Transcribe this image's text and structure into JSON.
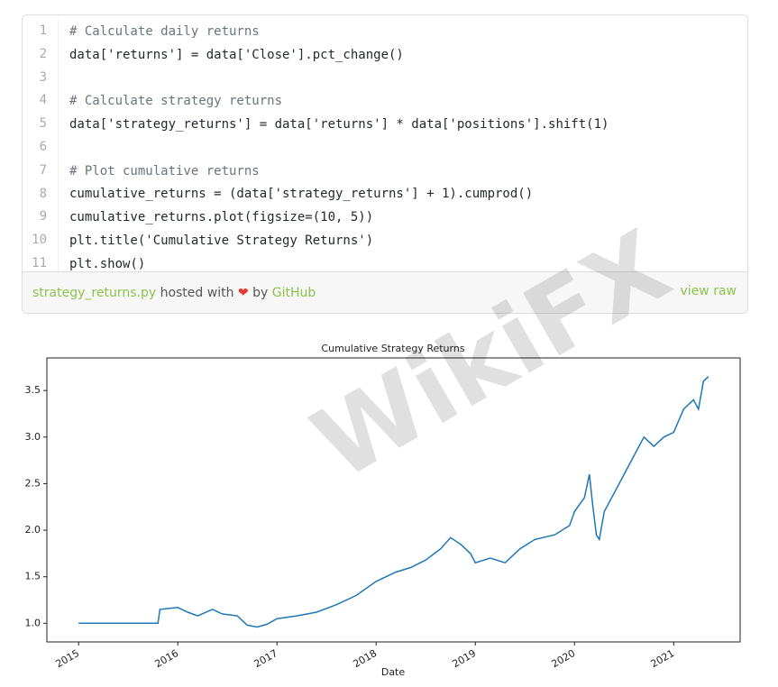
{
  "gist": {
    "line_numbers": [
      1,
      2,
      3,
      4,
      5,
      6,
      7,
      8,
      9,
      10,
      11
    ],
    "lines": [
      "# Calculate daily returns",
      "data['returns'] = data['Close'].pct_change()",
      "",
      "# Calculate strategy returns",
      "data['strategy_returns'] = data['returns'] * data['positions'].shift(1)",
      "",
      "# Plot cumulative returns",
      "cumulative_returns = (data['strategy_returns'] + 1).cumprod()",
      "cumulative_returns.plot(figsize=(10, 5))",
      "plt.title('Cumulative Strategy Returns')",
      "plt.show()"
    ],
    "file_name": "strategy_returns.py",
    "hosted_with": "hosted with",
    "by": "by",
    "host": "GitHub",
    "view_raw": "view raw"
  },
  "watermark": "WikiFX",
  "chart_data": {
    "type": "line",
    "title": "Cumulative Strategy Returns",
    "x_label": "Date",
    "color": "#1f77b4",
    "x": [
      2015.0,
      2015.8,
      2015.82,
      2016.0,
      2016.1,
      2016.2,
      2016.35,
      2016.45,
      2016.6,
      2016.7,
      2016.8,
      2016.9,
      2017.0,
      2017.2,
      2017.4,
      2017.6,
      2017.8,
      2018.0,
      2018.1,
      2018.2,
      2018.35,
      2018.5,
      2018.65,
      2018.75,
      2018.85,
      2018.95,
      2019.0,
      2019.15,
      2019.3,
      2019.45,
      2019.6,
      2019.8,
      2019.95,
      2020.0,
      2020.1,
      2020.15,
      2020.18,
      2020.22,
      2020.25,
      2020.3,
      2020.4,
      2020.5,
      2020.6,
      2020.7,
      2020.8,
      2020.9,
      2021.0,
      2021.1,
      2021.2,
      2021.25,
      2021.3,
      2021.35
    ],
    "values": [
      1.0,
      1.0,
      1.15,
      1.17,
      1.12,
      1.08,
      1.15,
      1.1,
      1.08,
      0.98,
      0.96,
      0.99,
      1.05,
      1.08,
      1.12,
      1.2,
      1.3,
      1.45,
      1.5,
      1.55,
      1.6,
      1.68,
      1.8,
      1.92,
      1.85,
      1.75,
      1.65,
      1.7,
      1.65,
      1.8,
      1.9,
      1.95,
      2.05,
      2.2,
      2.35,
      2.6,
      2.3,
      1.95,
      1.9,
      2.2,
      2.4,
      2.6,
      2.8,
      3.0,
      2.9,
      3.0,
      3.05,
      3.3,
      3.4,
      3.3,
      3.6,
      3.65
    ],
    "xlim": [
      2014.68,
      2021.67
    ],
    "xticks": [
      2015,
      2016,
      2017,
      2018,
      2019,
      2020,
      2021
    ],
    "ylim": [
      0.8,
      3.85
    ],
    "yticks": [
      {
        "value": 1,
        "label": "1.0"
      },
      1.5,
      {
        "value": 2,
        "label": "2.0"
      },
      2.5,
      {
        "value": 3,
        "label": "3.0"
      },
      3.5
    ]
  }
}
